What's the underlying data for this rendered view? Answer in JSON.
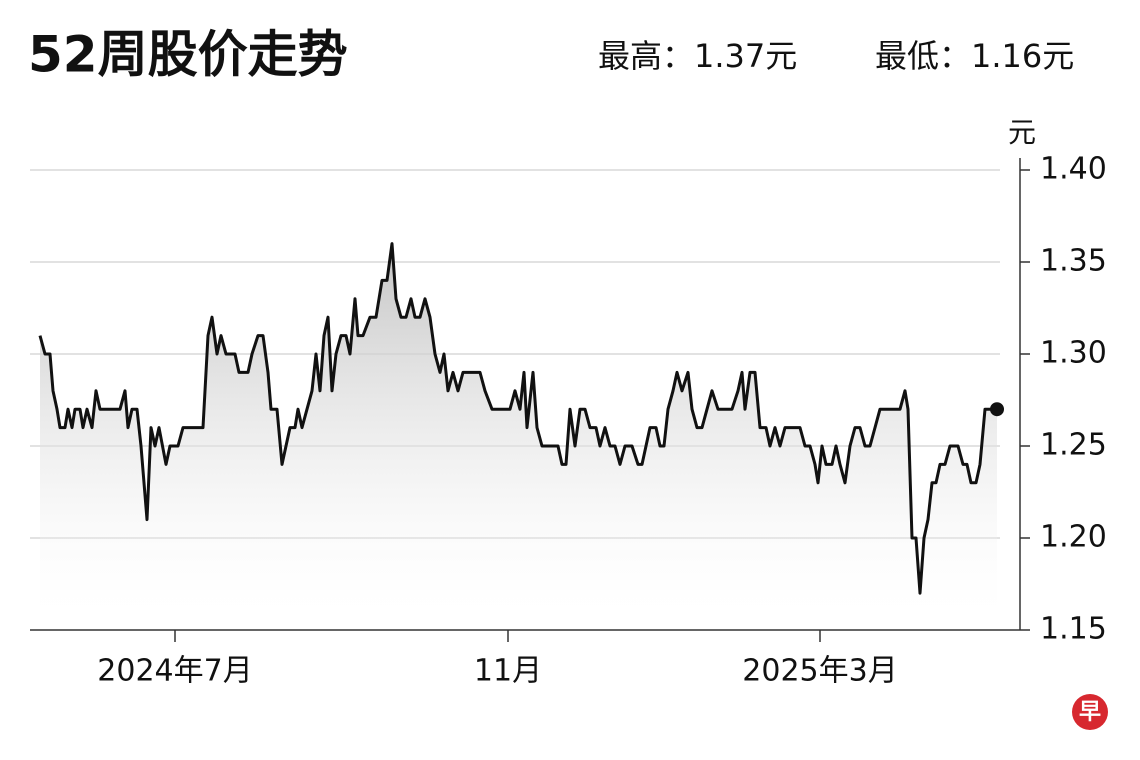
{
  "header": {
    "title": "52周股价走势",
    "high": "最高：1.37元",
    "low": "最低：1.16元"
  },
  "logo": "早",
  "chart_data": {
    "type": "line",
    "y_unit": "元",
    "x": [
      40,
      45,
      50,
      53,
      57,
      60,
      65,
      68,
      72,
      75,
      80,
      83,
      87,
      92,
      96,
      100,
      110,
      120,
      125,
      128,
      132,
      137,
      141,
      147,
      151,
      155,
      159,
      166,
      170,
      178,
      183,
      195,
      203,
      208,
      212,
      217,
      221,
      226,
      235,
      239,
      248,
      252,
      258,
      263,
      268,
      271,
      277,
      282,
      286,
      290,
      295,
      298,
      302,
      307,
      312,
      316,
      320,
      324,
      328,
      332,
      336,
      341,
      346,
      350,
      355,
      358,
      363,
      370,
      376,
      382,
      387,
      392,
      396,
      401,
      406,
      411,
      415,
      420,
      425,
      430,
      435,
      440,
      444,
      448,
      453,
      458,
      463,
      470,
      480,
      485,
      492,
      500,
      510,
      515,
      520,
      524,
      527,
      533,
      537,
      542,
      550,
      558,
      562,
      566,
      570,
      575,
      580,
      585,
      590,
      596,
      600,
      605,
      610,
      615,
      620,
      625,
      632,
      638,
      642,
      646,
      650,
      656,
      660,
      664,
      668,
      673,
      677,
      682,
      688,
      692,
      697,
      702,
      707,
      712,
      718,
      725,
      732,
      738,
      742,
      745,
      750,
      755,
      760,
      766,
      770,
      775,
      780,
      785,
      795,
      800,
      805,
      810,
      815,
      818,
      822,
      826,
      832,
      836,
      840,
      845,
      850,
      855,
      860,
      865,
      870,
      875,
      880,
      890,
      900,
      905,
      908,
      912,
      916,
      920,
      924,
      928,
      932,
      936,
      940,
      945,
      950,
      958,
      963,
      967,
      971,
      976,
      980,
      985,
      992,
      997
    ],
    "series": [
      {
        "name": "股价",
        "color": "#111111",
        "values": [
          1.31,
          1.3,
          1.3,
          1.28,
          1.27,
          1.26,
          1.26,
          1.27,
          1.26,
          1.27,
          1.27,
          1.26,
          1.27,
          1.26,
          1.28,
          1.27,
          1.27,
          1.27,
          1.28,
          1.26,
          1.27,
          1.27,
          1.25,
          1.21,
          1.26,
          1.25,
          1.26,
          1.24,
          1.25,
          1.25,
          1.26,
          1.26,
          1.26,
          1.31,
          1.32,
          1.3,
          1.31,
          1.3,
          1.3,
          1.29,
          1.29,
          1.3,
          1.31,
          1.31,
          1.29,
          1.27,
          1.27,
          1.24,
          1.25,
          1.26,
          1.26,
          1.27,
          1.26,
          1.27,
          1.28,
          1.3,
          1.28,
          1.31,
          1.32,
          1.28,
          1.3,
          1.31,
          1.31,
          1.3,
          1.33,
          1.31,
          1.31,
          1.32,
          1.32,
          1.34,
          1.34,
          1.36,
          1.33,
          1.32,
          1.32,
          1.33,
          1.32,
          1.32,
          1.33,
          1.32,
          1.3,
          1.29,
          1.3,
          1.28,
          1.29,
          1.28,
          1.29,
          1.29,
          1.29,
          1.28,
          1.27,
          1.27,
          1.27,
          1.28,
          1.27,
          1.29,
          1.26,
          1.29,
          1.26,
          1.25,
          1.25,
          1.25,
          1.24,
          1.24,
          1.27,
          1.25,
          1.27,
          1.27,
          1.26,
          1.26,
          1.25,
          1.26,
          1.25,
          1.25,
          1.24,
          1.25,
          1.25,
          1.24,
          1.24,
          1.25,
          1.26,
          1.26,
          1.25,
          1.25,
          1.27,
          1.28,
          1.29,
          1.28,
          1.29,
          1.27,
          1.26,
          1.26,
          1.27,
          1.28,
          1.27,
          1.27,
          1.27,
          1.28,
          1.29,
          1.27,
          1.29,
          1.29,
          1.26,
          1.26,
          1.25,
          1.26,
          1.25,
          1.26,
          1.26,
          1.26,
          1.25,
          1.25,
          1.24,
          1.23,
          1.25,
          1.24,
          1.24,
          1.25,
          1.24,
          1.23,
          1.25,
          1.26,
          1.26,
          1.25,
          1.25,
          1.26,
          1.27,
          1.27,
          1.27,
          1.28,
          1.27,
          1.2,
          1.2,
          1.17,
          1.2,
          1.21,
          1.23,
          1.23,
          1.24,
          1.24,
          1.25,
          1.25,
          1.24,
          1.24,
          1.23,
          1.23,
          1.24,
          1.27,
          1.27,
          1.27
        ]
      }
    ],
    "xlim": [
      30,
      1000
    ],
    "xticks": [
      {
        "value": 175,
        "label": "2024年7月"
      },
      {
        "value": 508,
        "label": "11月"
      },
      {
        "value": 820,
        "label": "2025年3月"
      }
    ],
    "ylim": [
      1.15,
      1.4
    ],
    "yticks": [
      {
        "value": 1.4,
        "label": "1.40"
      },
      1.35,
      {
        "value": 1.3,
        "label": "1.30"
      },
      1.25,
      {
        "value": 1.2,
        "label": "1.20"
      },
      1.15
    ],
    "grid": true,
    "end_marker": true
  }
}
